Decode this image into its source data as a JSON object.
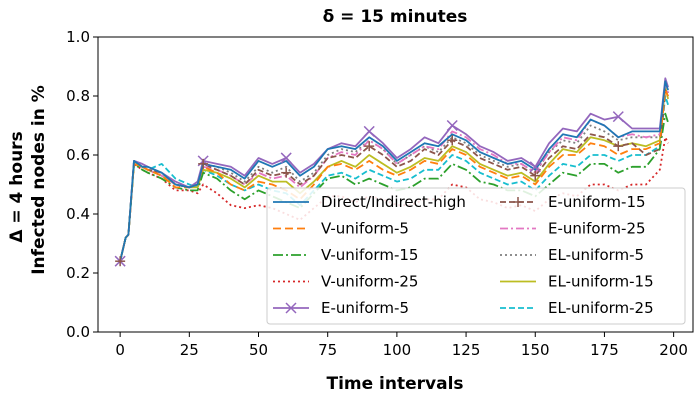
{
  "chart_data": {
    "type": "line",
    "title": "δ = 15 minutes",
    "xlabel": "Time intervals",
    "ylabel_lines": [
      "Δ = 4 hours",
      "Infected nodes in %"
    ],
    "xlim": [
      -8,
      207
    ],
    "ylim": [
      0.0,
      1.0
    ],
    "xticks": [
      0,
      25,
      50,
      75,
      100,
      125,
      150,
      175,
      200
    ],
    "yticks": [
      0.0,
      0.2,
      0.4,
      0.6,
      0.8,
      1.0
    ],
    "ytick_labels": [
      "0.0",
      "0.2",
      "0.4",
      "0.6",
      "0.8",
      "1.0"
    ],
    "grid": false,
    "legend_placement": "lower-right",
    "x": [
      0,
      2,
      3,
      5,
      8,
      10,
      15,
      20,
      25,
      28,
      30,
      35,
      40,
      45,
      50,
      55,
      60,
      65,
      70,
      75,
      80,
      85,
      90,
      95,
      100,
      105,
      110,
      115,
      120,
      125,
      130,
      135,
      140,
      145,
      150,
      155,
      160,
      165,
      170,
      175,
      180,
      185,
      190,
      195,
      197,
      198
    ],
    "series": [
      {
        "name": "Direct/Indirect-high",
        "color": "#1f77b4",
        "dash": "",
        "marker": "",
        "values": [
          0.24,
          0.32,
          0.33,
          0.58,
          0.56,
          0.56,
          0.54,
          0.5,
          0.49,
          0.5,
          0.57,
          0.56,
          0.55,
          0.52,
          0.58,
          0.56,
          0.58,
          0.53,
          0.56,
          0.62,
          0.63,
          0.62,
          0.66,
          0.63,
          0.58,
          0.61,
          0.64,
          0.63,
          0.67,
          0.65,
          0.61,
          0.59,
          0.57,
          0.58,
          0.55,
          0.62,
          0.67,
          0.66,
          0.72,
          0.7,
          0.66,
          0.68,
          0.68,
          0.68,
          0.85,
          0.82
        ]
      },
      {
        "name": "V-uniform-5",
        "color": "#ff7f0e",
        "dash": "8,4",
        "marker": "",
        "values": [
          0.24,
          0.32,
          0.33,
          0.57,
          0.56,
          0.55,
          0.53,
          0.49,
          0.49,
          0.5,
          0.56,
          0.54,
          0.5,
          0.48,
          0.51,
          0.5,
          0.48,
          0.45,
          0.5,
          0.56,
          0.57,
          0.55,
          0.58,
          0.55,
          0.53,
          0.55,
          0.58,
          0.57,
          0.62,
          0.6,
          0.56,
          0.54,
          0.52,
          0.53,
          0.5,
          0.56,
          0.6,
          0.6,
          0.64,
          0.63,
          0.6,
          0.62,
          0.62,
          0.64,
          0.82,
          0.8
        ]
      },
      {
        "name": "V-uniform-15",
        "color": "#2ca02c",
        "dash": "10,3,2,3",
        "marker": "",
        "values": [
          0.24,
          0.32,
          0.33,
          0.57,
          0.55,
          0.54,
          0.52,
          0.49,
          0.48,
          0.48,
          0.54,
          0.52,
          0.48,
          0.45,
          0.48,
          0.46,
          0.44,
          0.42,
          0.47,
          0.52,
          0.53,
          0.5,
          0.52,
          0.5,
          0.48,
          0.49,
          0.52,
          0.52,
          0.57,
          0.55,
          0.51,
          0.5,
          0.48,
          0.48,
          0.46,
          0.5,
          0.54,
          0.53,
          0.57,
          0.57,
          0.54,
          0.56,
          0.56,
          0.62,
          0.74,
          0.71
        ]
      },
      {
        "name": "V-uniform-25",
        "color": "#d62728",
        "dash": "2,3",
        "marker": "",
        "values": [
          0.24,
          0.32,
          0.33,
          0.57,
          0.55,
          0.54,
          0.52,
          0.48,
          0.48,
          0.47,
          0.5,
          0.47,
          0.43,
          0.42,
          0.43,
          0.42,
          0.4,
          0.38,
          0.42,
          0.46,
          0.46,
          0.44,
          0.46,
          0.45,
          0.43,
          0.43,
          0.45,
          0.45,
          0.5,
          0.49,
          0.45,
          0.44,
          0.42,
          0.43,
          0.41,
          0.45,
          0.47,
          0.46,
          0.5,
          0.5,
          0.48,
          0.5,
          0.5,
          0.55,
          0.66,
          0.64
        ]
      },
      {
        "name": "E-uniform-5",
        "color": "#9467bd",
        "dash": "",
        "marker": "x",
        "values": [
          0.24,
          0.32,
          0.33,
          0.58,
          0.57,
          0.56,
          0.54,
          0.51,
          0.49,
          0.51,
          0.58,
          0.57,
          0.56,
          0.53,
          0.59,
          0.57,
          0.59,
          0.54,
          0.57,
          0.62,
          0.64,
          0.63,
          0.68,
          0.64,
          0.59,
          0.62,
          0.66,
          0.64,
          0.7,
          0.67,
          0.63,
          0.61,
          0.58,
          0.59,
          0.56,
          0.64,
          0.69,
          0.68,
          0.74,
          0.72,
          0.73,
          0.69,
          0.69,
          0.69,
          0.86,
          0.83
        ]
      },
      {
        "name": "E-uniform-15",
        "color": "#8c564b",
        "dash": "6,3",
        "marker": "+",
        "values": [
          0.24,
          0.32,
          0.33,
          0.58,
          0.56,
          0.55,
          0.54,
          0.5,
          0.49,
          0.5,
          0.57,
          0.55,
          0.53,
          0.5,
          0.55,
          0.53,
          0.54,
          0.5,
          0.53,
          0.59,
          0.6,
          0.59,
          0.63,
          0.6,
          0.56,
          0.58,
          0.62,
          0.6,
          0.65,
          0.63,
          0.59,
          0.57,
          0.55,
          0.56,
          0.53,
          0.59,
          0.63,
          0.62,
          0.67,
          0.66,
          0.63,
          0.64,
          0.6,
          0.62,
          0.82,
          0.8
        ]
      },
      {
        "name": "E-uniform-25",
        "color": "#e377c2",
        "dash": "8,3,2,3",
        "marker": "",
        "values": [
          0.24,
          0.32,
          0.33,
          0.58,
          0.56,
          0.55,
          0.53,
          0.5,
          0.49,
          0.5,
          0.56,
          0.55,
          0.53,
          0.5,
          0.54,
          0.52,
          0.53,
          0.49,
          0.53,
          0.59,
          0.61,
          0.6,
          0.65,
          0.62,
          0.57,
          0.6,
          0.63,
          0.62,
          0.68,
          0.66,
          0.62,
          0.6,
          0.57,
          0.57,
          0.54,
          0.61,
          0.66,
          0.65,
          0.72,
          0.7,
          0.66,
          0.67,
          0.66,
          0.67,
          0.84,
          0.81
        ]
      },
      {
        "name": "EL-uniform-5",
        "color": "#7f7f7f",
        "dash": "2,3",
        "marker": "",
        "values": [
          0.24,
          0.32,
          0.33,
          0.58,
          0.56,
          0.55,
          0.54,
          0.5,
          0.49,
          0.5,
          0.57,
          0.56,
          0.54,
          0.51,
          0.56,
          0.54,
          0.56,
          0.51,
          0.54,
          0.6,
          0.62,
          0.61,
          0.65,
          0.62,
          0.57,
          0.6,
          0.63,
          0.61,
          0.66,
          0.64,
          0.6,
          0.58,
          0.56,
          0.57,
          0.54,
          0.61,
          0.65,
          0.64,
          0.7,
          0.68,
          0.65,
          0.66,
          0.66,
          0.66,
          0.84,
          0.81
        ]
      },
      {
        "name": "EL-uniform-15",
        "color": "#bcbd22",
        "dash": "",
        "marker": "",
        "values": [
          0.24,
          0.32,
          0.33,
          0.57,
          0.56,
          0.55,
          0.53,
          0.5,
          0.49,
          0.49,
          0.55,
          0.54,
          0.52,
          0.49,
          0.53,
          0.51,
          0.51,
          0.47,
          0.51,
          0.56,
          0.58,
          0.56,
          0.6,
          0.57,
          0.54,
          0.56,
          0.59,
          0.58,
          0.63,
          0.61,
          0.57,
          0.55,
          0.53,
          0.54,
          0.51,
          0.57,
          0.62,
          0.61,
          0.66,
          0.65,
          0.63,
          0.64,
          0.63,
          0.65,
          0.83,
          0.79
        ]
      },
      {
        "name": "EL-uniform-25",
        "color": "#17becf",
        "dash": "6,3",
        "marker": "",
        "values": [
          0.24,
          0.32,
          0.33,
          0.57,
          0.56,
          0.55,
          0.57,
          0.52,
          0.5,
          0.49,
          0.55,
          0.53,
          0.5,
          0.48,
          0.5,
          0.48,
          0.47,
          0.43,
          0.48,
          0.53,
          0.54,
          0.52,
          0.55,
          0.53,
          0.51,
          0.52,
          0.55,
          0.55,
          0.6,
          0.58,
          0.54,
          0.52,
          0.5,
          0.51,
          0.48,
          0.53,
          0.57,
          0.56,
          0.6,
          0.6,
          0.58,
          0.6,
          0.6,
          0.63,
          0.8,
          0.77
        ]
      }
    ]
  }
}
